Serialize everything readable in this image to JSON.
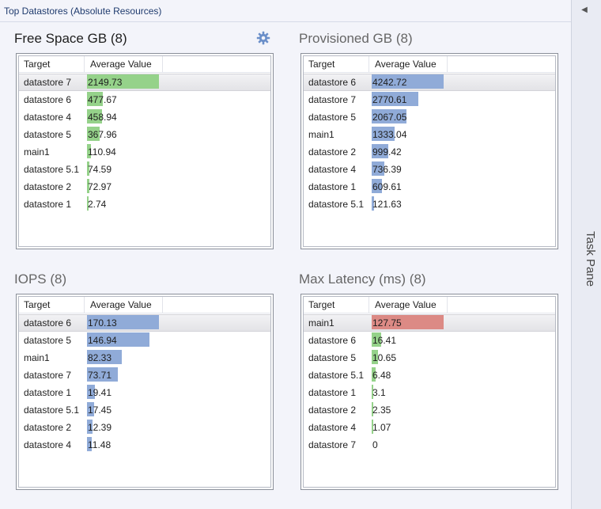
{
  "page_title": "Top Datastores (Absolute Resources)",
  "task_pane": {
    "label": "Task Pane",
    "collapse_icon": "chevron-left-icon"
  },
  "columns": {
    "target": "Target",
    "value": "Average Value"
  },
  "panels": [
    {
      "title": "Free Space GB (8)",
      "bar_color": "#95d28a",
      "max": 2149.73,
      "rows": [
        {
          "target": "datastore 7",
          "value": "2149.73",
          "num": 2149.73,
          "selected": true
        },
        {
          "target": "datastore 6",
          "value": "477.67",
          "num": 477.67
        },
        {
          "target": "datastore 4",
          "value": "458.94",
          "num": 458.94
        },
        {
          "target": "datastore 5",
          "value": "367.96",
          "num": 367.96
        },
        {
          "target": "main1",
          "value": "110.94",
          "num": 110.94
        },
        {
          "target": "datastore 5.1",
          "value": "74.59",
          "num": 74.59
        },
        {
          "target": "datastore 2",
          "value": "72.97",
          "num": 72.97
        },
        {
          "target": "datastore 1",
          "value": "2.74",
          "num": 2.74
        }
      ]
    },
    {
      "title": "Provisioned GB (8)",
      "bar_color": "#90abd8",
      "max": 4242.72,
      "rows": [
        {
          "target": "datastore 6",
          "value": "4242.72",
          "num": 4242.72,
          "selected": true
        },
        {
          "target": "datastore 7",
          "value": "2770.61",
          "num": 2770.61
        },
        {
          "target": "datastore 5",
          "value": "2067.05",
          "num": 2067.05
        },
        {
          "target": "main1",
          "value": "1333.04",
          "num": 1333.04
        },
        {
          "target": "datastore 2",
          "value": "999.42",
          "num": 999.42
        },
        {
          "target": "datastore 4",
          "value": "736.39",
          "num": 736.39
        },
        {
          "target": "datastore 1",
          "value": "609.61",
          "num": 609.61
        },
        {
          "target": "datastore 5.1",
          "value": "121.63",
          "num": 121.63
        }
      ]
    },
    {
      "title": "IOPS (8)",
      "bar_color": "#90abd8",
      "max": 170.13,
      "rows": [
        {
          "target": "datastore 6",
          "value": "170.13",
          "num": 170.13,
          "selected": true
        },
        {
          "target": "datastore 5",
          "value": "146.94",
          "num": 146.94
        },
        {
          "target": "main1",
          "value": "82.33",
          "num": 82.33
        },
        {
          "target": "datastore 7",
          "value": "73.71",
          "num": 73.71
        },
        {
          "target": "datastore 1",
          "value": "19.41",
          "num": 19.41
        },
        {
          "target": "datastore 5.1",
          "value": "17.45",
          "num": 17.45
        },
        {
          "target": "datastore 2",
          "value": "12.39",
          "num": 12.39
        },
        {
          "target": "datastore 4",
          "value": "11.48",
          "num": 11.48
        }
      ]
    },
    {
      "title": "Max Latency (ms) (8)",
      "bar_color": "#95d28a",
      "highlight_color": "#dc8a85",
      "max": 127.75,
      "rows": [
        {
          "target": "main1",
          "value": "127.75",
          "num": 127.75,
          "selected": true,
          "alert": true
        },
        {
          "target": "datastore 6",
          "value": "16.41",
          "num": 16.41
        },
        {
          "target": "datastore 5",
          "value": "10.65",
          "num": 10.65
        },
        {
          "target": "datastore 5.1",
          "value": "6.48",
          "num": 6.48
        },
        {
          "target": "datastore 1",
          "value": "3.1",
          "num": 3.1
        },
        {
          "target": "datastore 2",
          "value": "2.35",
          "num": 2.35
        },
        {
          "target": "datastore 4",
          "value": "1.07",
          "num": 1.07
        },
        {
          "target": "datastore 7",
          "value": "0",
          "num": 0
        }
      ]
    }
  ]
}
